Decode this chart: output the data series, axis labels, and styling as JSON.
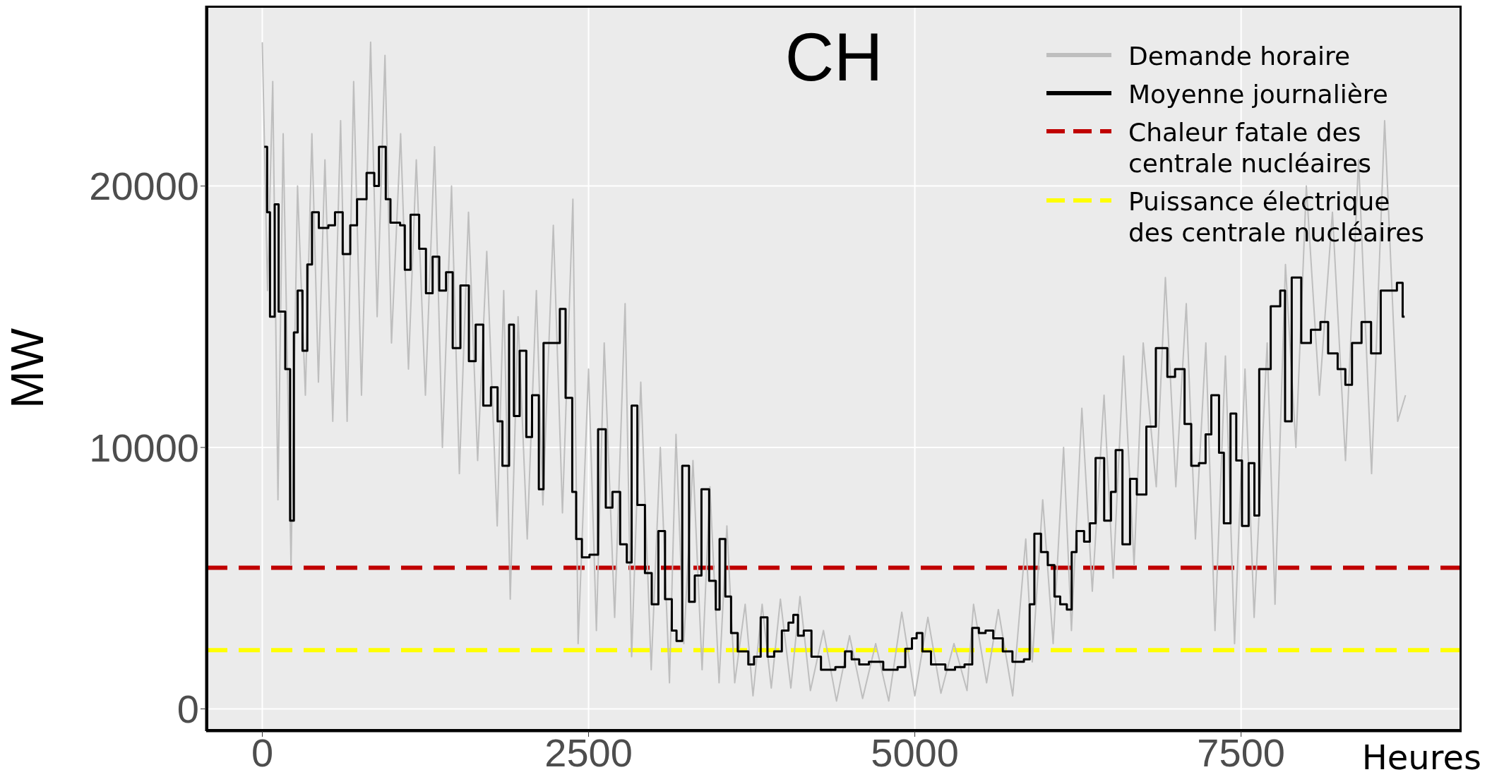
{
  "chart_data": {
    "type": "line",
    "title": "CH",
    "xlabel": "Heures",
    "ylabel": "MW",
    "xlim": [
      -430,
      9190
    ],
    "ylim": [
      -850,
      26900
    ],
    "xticks": [
      0,
      2500,
      5000,
      7500
    ],
    "yticks": [
      0,
      10000,
      20000
    ],
    "grid": true,
    "legend": "top right",
    "marker": "none",
    "series": [
      {
        "name": "Demande horaire",
        "color": "#bebebe",
        "type": "line",
        "x": [
          0,
          40,
          80,
          120,
          160,
          220,
          270,
          330,
          380,
          430,
          480,
          540,
          600,
          650,
          700,
          760,
          830,
          880,
          940,
          990,
          1060,
          1120,
          1180,
          1250,
          1320,
          1380,
          1450,
          1510,
          1580,
          1650,
          1720,
          1800,
          1850,
          1900,
          1960,
          2030,
          2100,
          2150,
          2230,
          2300,
          2380,
          2420,
          2500,
          2560,
          2620,
          2700,
          2780,
          2830,
          2900,
          2980,
          3050,
          3120,
          3170,
          3230,
          3300,
          3370,
          3430,
          3500,
          3560,
          3620,
          3700,
          3760,
          3830,
          3900,
          3970,
          4050,
          4120,
          4200,
          4300,
          4400,
          4500,
          4600,
          4700,
          4800,
          4900,
          5000,
          5100,
          5200,
          5300,
          5400,
          5450,
          5550,
          5640,
          5750,
          5850,
          5900,
          5980,
          6060,
          6140,
          6200,
          6280,
          6360,
          6450,
          6520,
          6600,
          6680,
          6750,
          6850,
          6920,
          7000,
          7080,
          7150,
          7230,
          7300,
          7380,
          7450,
          7530,
          7600,
          7700,
          7760,
          7840,
          7920,
          8000,
          8100,
          8200,
          8300,
          8400,
          8500,
          8600,
          8700,
          8760
        ],
        "values": [
          25500,
          16000,
          24000,
          8000,
          22000,
          5500,
          20000,
          12000,
          22000,
          12500,
          21000,
          11000,
          22500,
          11000,
          24000,
          12000,
          25500,
          15000,
          25000,
          14000,
          22000,
          13000,
          21000,
          12000,
          21500,
          10000,
          20000,
          9000,
          19000,
          9500,
          17500,
          7000,
          16000,
          4200,
          15000,
          6500,
          16000,
          7800,
          18500,
          7500,
          19500,
          2500,
          13000,
          3000,
          14000,
          3500,
          15500,
          2000,
          12500,
          1500,
          10000,
          1000,
          10500,
          2500,
          9500,
          1500,
          8500,
          1000,
          7000,
          1000,
          4000,
          500,
          4000,
          800,
          4200,
          800,
          4300,
          700,
          3000,
          300,
          2800,
          400,
          2500,
          300,
          3700,
          500,
          3500,
          600,
          2500,
          700,
          4000,
          1000,
          3800,
          500,
          6500,
          1800,
          8000,
          2500,
          10000,
          3000,
          11500,
          4500,
          12000,
          5000,
          13500,
          5500,
          14000,
          8500,
          16500,
          8500,
          15500,
          6500,
          14000,
          3000,
          13500,
          2500,
          13000,
          3500,
          14000,
          4000,
          17000,
          10000,
          20000,
          12000,
          19000,
          9500,
          21000,
          9000,
          22500,
          11000,
          12000
        ]
      },
      {
        "name": "Moyenne journalière",
        "color": "#000000",
        "type": "step",
        "x": [
          15,
          37,
          59,
          95,
          125,
          176,
          213,
          242,
          271,
          308,
          345,
          381,
          433,
          506,
          557,
          616,
          674,
          726,
          799,
          858,
          894,
          946,
          982,
          1056,
          1092,
          1136,
          1202,
          1254,
          1305,
          1356,
          1408,
          1459,
          1518,
          1583,
          1635,
          1693,
          1752,
          1803,
          1840,
          1891,
          1928,
          1972,
          2023,
          2067,
          2119,
          2155,
          2229,
          2280,
          2324,
          2375,
          2405,
          2449,
          2507,
          2573,
          2632,
          2683,
          2742,
          2793,
          2830,
          2874,
          2932,
          2984,
          3035,
          3086,
          3138,
          3174,
          3218,
          3270,
          3314,
          3365,
          3424,
          3475,
          3504,
          3548,
          3592,
          3643,
          3724,
          3768,
          3819,
          3871,
          3922,
          3981,
          4032,
          4069,
          4105,
          4149,
          4208,
          4281,
          4391,
          4465,
          4516,
          4574,
          4648,
          4758,
          4868,
          4927,
          4978,
          5014,
          5058,
          5124,
          5234,
          5308,
          5381,
          5440,
          5491,
          5542,
          5601,
          5674,
          5748,
          5836,
          5880,
          5916,
          5967,
          6019,
          6070,
          6114,
          6165,
          6202,
          6239,
          6297,
          6341,
          6385,
          6451,
          6503,
          6539,
          6591,
          6649,
          6701,
          6774,
          6847,
          6935,
          6994,
          7067,
          7118,
          7177,
          7228,
          7272,
          7331,
          7368,
          7419,
          7463,
          7507,
          7558,
          7602,
          7639,
          7727,
          7800,
          7837,
          7888,
          7961,
          8035,
          8108,
          8167,
          8240,
          8299,
          8350,
          8423,
          8496,
          8570,
          8694,
          8738,
          8753
        ],
        "values": [
          21500,
          19000,
          15000,
          19300,
          15200,
          13000,
          7200,
          14400,
          16000,
          13700,
          17000,
          19000,
          18400,
          18500,
          19000,
          17400,
          18500,
          19500,
          20500,
          20000,
          21500,
          19500,
          18600,
          18500,
          16800,
          18900,
          17600,
          15900,
          17300,
          16000,
          16700,
          13800,
          16200,
          13300,
          14700,
          11600,
          12300,
          11000,
          9300,
          14700,
          11200,
          13700,
          10400,
          12000,
          8400,
          14000,
          14000,
          15300,
          11900,
          8300,
          6500,
          5800,
          5900,
          10700,
          7700,
          8300,
          6300,
          5600,
          11600,
          7800,
          5200,
          4000,
          6800,
          4200,
          3000,
          2600,
          9300,
          4100,
          5100,
          8400,
          4900,
          3800,
          6500,
          4300,
          2900,
          2200,
          1700,
          2000,
          3500,
          2000,
          2200,
          3000,
          3300,
          3600,
          2800,
          3000,
          2000,
          1500,
          1600,
          2200,
          1900,
          1700,
          1800,
          1500,
          1600,
          2300,
          2700,
          2900,
          2200,
          1700,
          1500,
          1600,
          1700,
          3100,
          2900,
          3000,
          2700,
          2200,
          1800,
          1900,
          4000,
          6700,
          6000,
          5500,
          4300,
          4000,
          3800,
          6000,
          6800,
          6400,
          7100,
          9600,
          7200,
          8300,
          9900,
          6300,
          8800,
          8200,
          10800,
          13800,
          12700,
          13000,
          10900,
          9300,
          9400,
          10500,
          12000,
          9800,
          7100,
          11300,
          9500,
          7000,
          9400,
          7400,
          13000,
          15400,
          16000,
          11000,
          16500,
          14000,
          14500,
          14800,
          13600,
          13000,
          12400,
          14000,
          14800,
          13600,
          16000,
          16300,
          15000,
          15000
        ]
      }
    ],
    "ref_lines": [
      {
        "axis": "y",
        "value": 5400,
        "label": "Chaleur fatale des centrale nucléaires",
        "color": "#c00000",
        "line_style": "dashed"
      },
      {
        "axis": "y",
        "value": 2250,
        "label": "Puissance électrique des centrale nucléaires",
        "color": "#ffff00",
        "line_style": "dashed"
      }
    ]
  }
}
